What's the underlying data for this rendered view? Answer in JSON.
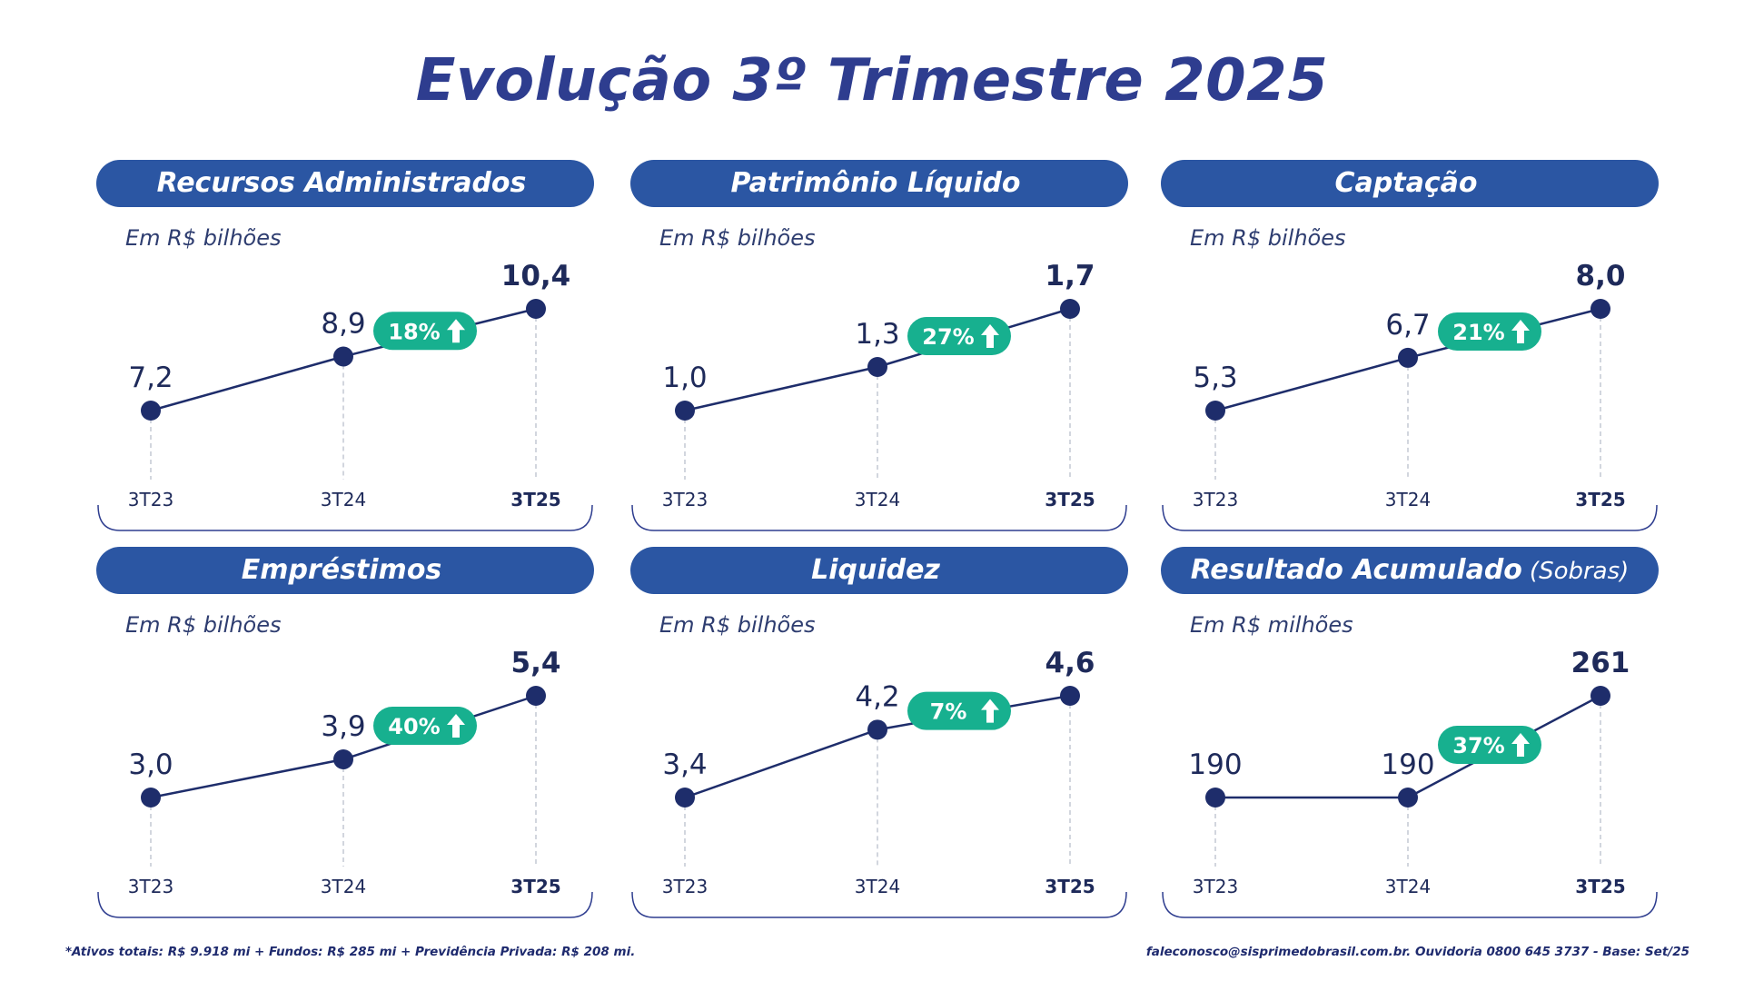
{
  "title": "Evolução 3º Trimestre 2025",
  "colors": {
    "header_bg": "#2b56a3",
    "title": "#2e3d8f",
    "line": "#1e2d6b",
    "badge": "#17b08f",
    "text": "#1e2a5a"
  },
  "panels": [
    {
      "header": "Recursos Administrados",
      "header_suffix": "",
      "unit": "Em R$ bilhões",
      "growth": "18%",
      "growth_icon": "arrow-up-icon"
    },
    {
      "header": "Patrimônio Líquido",
      "header_suffix": "",
      "unit": "Em R$ bilhões",
      "growth": "27%",
      "growth_icon": "arrow-up-icon"
    },
    {
      "header": "Captação",
      "header_suffix": "",
      "unit": "Em R$ bilhões",
      "growth": "21%",
      "growth_icon": "arrow-up-icon"
    },
    {
      "header": "Empréstimos",
      "header_suffix": "",
      "unit": "Em R$ bilhões",
      "growth": "40%",
      "growth_icon": "arrow-up-icon"
    },
    {
      "header": "Liquidez",
      "header_suffix": "",
      "unit": "Em R$ bilhões",
      "growth": "7%",
      "growth_icon": "arrow-up-icon"
    },
    {
      "header": "Resultado Acumulado",
      "header_suffix": "(Sobras)",
      "unit": "Em R$ milhões",
      "growth": "37%",
      "growth_icon": "arrow-up-icon"
    }
  ],
  "chart_data": [
    {
      "type": "line",
      "title": "Recursos Administrados",
      "categories": [
        "3T23",
        "3T24",
        "3T25"
      ],
      "values": [
        7.2,
        8.9,
        10.4
      ],
      "labels": [
        "7,2",
        "8,9",
        "10,4"
      ]
    },
    {
      "type": "line",
      "title": "Patrimônio Líquido",
      "categories": [
        "3T23",
        "3T24",
        "3T25"
      ],
      "values": [
        1.0,
        1.3,
        1.7
      ],
      "labels": [
        "1,0",
        "1,3",
        "1,7"
      ]
    },
    {
      "type": "line",
      "title": "Captação",
      "categories": [
        "3T23",
        "3T24",
        "3T25"
      ],
      "values": [
        5.3,
        6.7,
        8.0
      ],
      "labels": [
        "5,3",
        "6,7",
        "8,0"
      ]
    },
    {
      "type": "line",
      "title": "Empréstimos",
      "categories": [
        "3T23",
        "3T24",
        "3T25"
      ],
      "values": [
        3.0,
        3.9,
        5.4
      ],
      "labels": [
        "3,0",
        "3,9",
        "5,4"
      ]
    },
    {
      "type": "line",
      "title": "Liquidez",
      "categories": [
        "3T23",
        "3T24",
        "3T25"
      ],
      "values": [
        3.4,
        4.2,
        4.6
      ],
      "labels": [
        "3,4",
        "4,2",
        "4,6"
      ]
    },
    {
      "type": "line",
      "title": "Resultado Acumulado",
      "categories": [
        "3T23",
        "3T24",
        "3T25"
      ],
      "values": [
        190,
        190,
        261
      ],
      "labels": [
        "190",
        "190",
        "261"
      ]
    }
  ],
  "footer": {
    "left": "*Ativos totais: R$ 9.918 mi + Fundos: R$ 285 mi + Previdência Privada: R$ 208 mi.",
    "right": "faleconosco@sisprimedobrasil.com.br. Ouvidoria 0800 645 3737 - Base: Set/25"
  }
}
